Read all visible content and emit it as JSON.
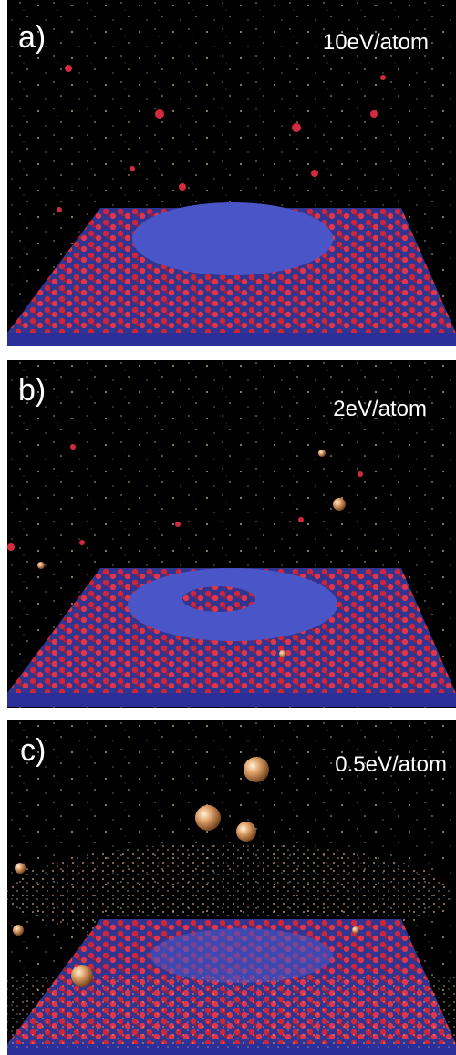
{
  "panels": [
    {
      "label": "a)",
      "energy": "10eV/atom"
    },
    {
      "label": "b)",
      "energy": "2eV/atom"
    },
    {
      "label": "c)",
      "energy": "0.5eV/atom"
    }
  ]
}
